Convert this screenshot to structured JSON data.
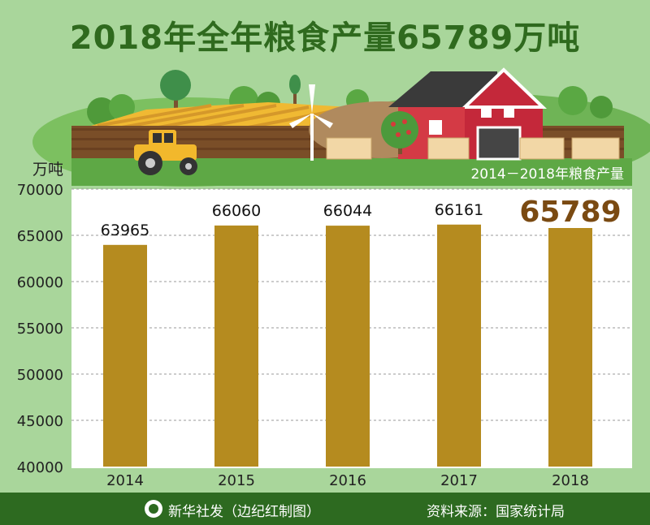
{
  "title": "2018年全年粮食产量65789万吨",
  "chart_data": {
    "type": "bar",
    "title": "2014－2018年粮食产量",
    "ylabel": "万吨",
    "categories": [
      "2014",
      "2015",
      "2016",
      "2017",
      "2018"
    ],
    "values": [
      63965,
      66060,
      66044,
      66161,
      65789
    ],
    "ylim": [
      40000,
      70000
    ],
    "yticks": [
      40000,
      45000,
      50000,
      55000,
      60000,
      65000,
      70000
    ],
    "grid": true,
    "colors": {
      "bar": "#b58b1f",
      "highlight_label": "#7a4a12"
    }
  },
  "footer": {
    "left": "新华社发（边纪红制图）",
    "right": "资料来源：国家统计局"
  }
}
